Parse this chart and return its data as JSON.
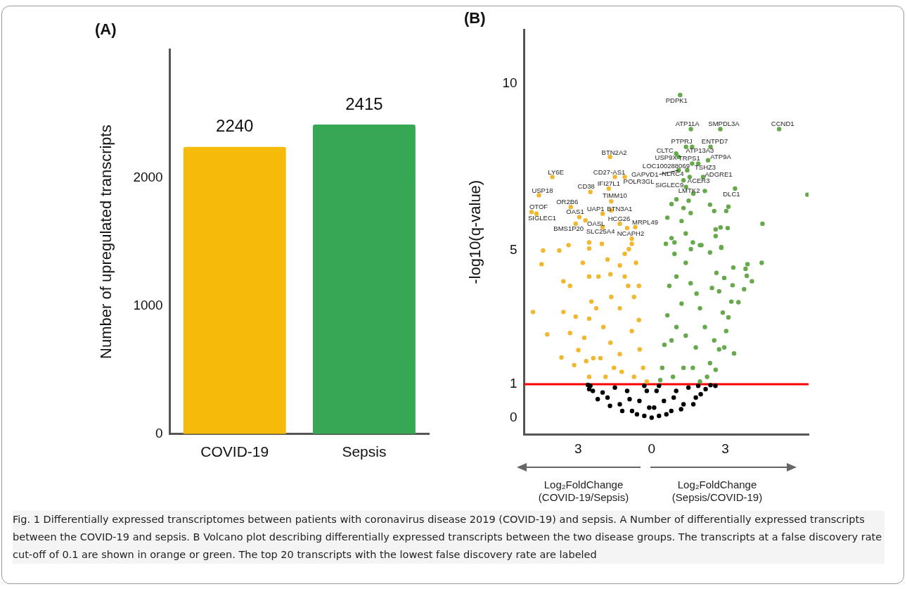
{
  "chart_data": [
    {
      "type": "bar",
      "title": "(A)",
      "ylabel": "Number of upregulated transcripts",
      "categories": [
        "COVID-19",
        "Sepsis"
      ],
      "values": [
        2240,
        2415
      ],
      "colors": [
        "#f6bb0a",
        "#36a853"
      ],
      "ylim": [
        0,
        3000
      ],
      "yticks": [
        0,
        1000,
        2000
      ],
      "data_labels": true,
      "grid": false,
      "legend": false
    },
    {
      "type": "scatter",
      "title": "(B)",
      "ylabel": "-log10(q-value)",
      "xlim": [
        -5.2,
        6.4
      ],
      "ylim": [
        -0.5,
        11.6
      ],
      "xticks": [
        {
          "value": -3,
          "label": "3"
        },
        0,
        3
      ],
      "yticks": [
        0,
        1,
        5,
        10
      ],
      "grid": false,
      "legend": false,
      "marker": "circle",
      "series": [
        {
          "color": "#000000",
          "x": [
            0,
            -0.3,
            0.3,
            -0.8,
            0.8,
            -1.3,
            1.3,
            -1.8,
            1.8,
            -2.4,
            2.2,
            -2.5,
            2.4,
            -0.5,
            0.5,
            -0.2,
            0.2,
            -0.3,
            0.3,
            -1.0,
            1.0,
            -1.5,
            1.5,
            -2.0,
            2.0,
            -1.2,
            1.2,
            -0.6,
            0.6,
            -2.6,
            -2.55,
            -0.9,
            0.9,
            -1.7,
            1.7,
            2.6,
            -2.2,
            0.1,
            -0.1,
            1.9
          ],
          "values": [
            0,
            0.05,
            0.05,
            0.2,
            0.2,
            0.4,
            0.4,
            0.6,
            0.6,
            0.8,
            0.85,
            0.95,
            0.97,
            0.5,
            0.5,
            0.8,
            0.8,
            0.95,
            0.95,
            0.8,
            0.8,
            0.9,
            0.9,
            0.75,
            0.7,
            0.2,
            0.25,
            0.1,
            0.1,
            0.98,
            0.85,
            0.55,
            0.6,
            0.35,
            0.4,
            0.95,
            0.55,
            0.3,
            0.3,
            0.95
          ]
        },
        {
          "color": "#f0b72f",
          "x": [
            -4.84,
            -4.49,
            -4.43,
            -4.26,
            -3.68,
            -3.16,
            -3.6,
            -3.33,
            -3.6,
            -3.33,
            -3.1,
            -2.99,
            -3.77,
            -3.39,
            -2.75,
            -2.55,
            -2.55,
            -2.81,
            -2.55,
            -2.46,
            -2.26,
            -2.17,
            -2.03,
            -1.97,
            -2.09,
            -2.55,
            -2.67,
            -1.8,
            -1.68,
            -1.65,
            -1.68,
            -1.54,
            -1.3,
            -1.3,
            -1.1,
            -0.93,
            -0.81,
            -0.96,
            -0.72,
            -0.81,
            -0.52,
            -0.49,
            -0.35,
            -0.2,
            -0.72,
            -1.22,
            -0.52,
            -0.64,
            -1.1,
            -1.3,
            -1.88,
            -2.38,
            -2.55,
            -0.81,
            -1.7,
            -4.05,
            -1.5,
            -1.1,
            -2.5,
            -1.75,
            -4.6,
            -1.65,
            -3.3,
            -4.9,
            -4.7,
            -2.95,
            -2.0,
            -2.7,
            -3.1,
            -1.3,
            -2.0,
            -0.67,
            -1.0,
            -1.65
          ],
          "values": [
            3.16,
            4.59,
            5.0,
            2.49,
            1.8,
            1.57,
            4.08,
            3.94,
            3.16,
            2.53,
            3.02,
            2.02,
            5.0,
            5.16,
            2.39,
            2.96,
            4.22,
            4.63,
            5.06,
            3.47,
            3.27,
            4.22,
            5.2,
            2.71,
            1.78,
            1.22,
            1.69,
            4.73,
            4.29,
            3.61,
            2.24,
            1.49,
            3.27,
            4.55,
            4.9,
            5.04,
            5.2,
            3.94,
            3.61,
            2.59,
            2.92,
            2.04,
            1.49,
            1.08,
            1.22,
            1.37,
            3.94,
            4.63,
            4.22,
            1.9,
            1.22,
            1.78,
            5.24,
            5.35,
            7.8,
            7.2,
            7.2,
            7.2,
            6.75,
            6.85,
            6.65,
            6.47,
            6.3,
            6.15,
            6.1,
            6.0,
            6.1,
            5.9,
            5.8,
            5.8,
            5.7,
            5.7,
            5.67,
            6.2
          ]
        },
        {
          "color": "#66a94b",
          "x": [
            0.58,
            0.93,
            1.6,
            2.03,
            2.84,
            4.49,
            3.91,
            3.83,
            3.88,
            4.09,
            3.77,
            3.33,
            3.3,
            2.96,
            2.64,
            2.38,
            2.75,
            2.46,
            3.25,
            3.54,
            3.13,
            2.9,
            3.04,
            3.36,
            2.96,
            2.61,
            2.38,
            2.26,
            1.97,
            1.8,
            2.17,
            1.97,
            1.83,
            1.59,
            1.39,
            1.22,
            1.39,
            1.3,
            1.01,
            0.93,
            0.72,
            0.64,
            0.52,
            0.43,
            0.35,
            0.81,
            1.01,
            0.87,
            1.68,
            2.55,
            2.75,
            0.81,
            1.01,
            1.51,
            2.17,
            2.38,
            3.13,
            3.04,
            2.55,
            1.3,
            1.59,
            0.64,
            1.22,
            4.52,
            2.61,
            2.81,
            3.1,
            2.61,
            0.81,
            1.39,
            1.68,
            2.84,
            1.97,
            1.16,
            1.6,
            2.8,
            5.2,
            1.4,
            1.65,
            2.4,
            1.0,
            1.1,
            1.65,
            1.9,
            2.3,
            1.45,
            2.1,
            1.55,
            1.3,
            1.4,
            1.7,
            3.4,
            6.35,
            1.1
          ],
          "values": [
            5.2,
            5.24,
            5.04,
            5.16,
            5.08,
            4.63,
            4.59,
            4.45,
            4.24,
            4.08,
            3.84,
            4.49,
            3.96,
            4.18,
            4.33,
            4.94,
            3.78,
            3.88,
            3.47,
            3.45,
            3.0,
            3.14,
            2.59,
            1.92,
            2.1,
            1.43,
            1.63,
            1.22,
            1.08,
            2.1,
            2.71,
            3.27,
            3.71,
            4.02,
            4.63,
            3.41,
            2.45,
            1.49,
            4.22,
            4.9,
            3.94,
            3.06,
            2.18,
            1.49,
            1.12,
            2.31,
            2.71,
            1.22,
            1.49,
            2.31,
            2.04,
            6.39,
            6.53,
            6.49,
            6.78,
            6.37,
            6.31,
            6.18,
            6.18,
            6.27,
            6.12,
            5.98,
            5.88,
            5.8,
            5.63,
            5.69,
            5.67,
            5.43,
            5.37,
            5.51,
            5.24,
            5.1,
            5.16,
            9.65,
            8.63,
            8.63,
            8.63,
            8.1,
            8.1,
            8.1,
            7.9,
            7.8,
            7.6,
            7.6,
            7.7,
            7.4,
            7.2,
            7.2,
            7.1,
            6.9,
            6.7,
            6.85,
            6.67,
            7.4
          ]
        }
      ],
      "ref_lines": [
        {
          "axis": "y",
          "value": 1,
          "color": "#ff0000"
        }
      ],
      "annotations": [
        "Log₂FoldChange\n(COVID-19/Sepsis)",
        "Log₂FoldChange\n(Sepsis/COVID-19)",
        "Fig. 1  Differentially expressed transcriptomes between patients with coronavirus disease 2019 (COVID-19) and sepsis. A Number of differentially expressed transcripts between the COVID-19 and sepsis. B Volcano plot describing differentially expressed transcripts between the two disease groups. The transcripts at a false discovery rate cut-off of 0.1 are shown in orange or green. The top 20 transcripts with the lowest false discovery rate are labeled",
        {
          "text": "PDPK1",
          "x": 1.16,
          "y": 9.65
        },
        {
          "text": "ATP11A",
          "x": 1.6,
          "y": 8.63
        },
        {
          "text": "SMPDL3A",
          "x": 2.8,
          "y": 8.63
        },
        {
          "text": "CCND1",
          "x": 5.2,
          "y": 8.63
        },
        {
          "text": "PTPRJ",
          "x": 1.4,
          "y": 8.1
        },
        {
          "text": "ENTPD7",
          "x": 2.4,
          "y": 8.1
        },
        {
          "text": "CLTC",
          "x": 1.0,
          "y": 7.9
        },
        {
          "text": "ATP13A3",
          "x": 1.65,
          "y": 8.1
        },
        {
          "text": "USP9X",
          "x": 1.1,
          "y": 7.8
        },
        {
          "text": "TRPS1",
          "x": 1.65,
          "y": 7.6
        },
        {
          "text": "ATP9A",
          "x": 2.3,
          "y": 7.7
        },
        {
          "text": "LOC100288069",
          "x": 1.45,
          "y": 7.4
        },
        {
          "text": "TSHZ3",
          "x": 1.9,
          "y": 7.6
        },
        {
          "text": "GAPVD1",
          "x": 1.1,
          "y": 7.4
        },
        {
          "text": "NLRC4",
          "x": 1.55,
          "y": 7.2
        },
        {
          "text": "ADGRE1",
          "x": 2.1,
          "y": 7.2
        },
        {
          "text": "SIGLEC9",
          "x": 1.3,
          "y": 7.1
        },
        {
          "text": "ACER3",
          "x": 1.4,
          "y": 6.9
        },
        {
          "text": "LMTK2",
          "x": 1.7,
          "y": 6.7
        },
        {
          "text": "DLC1",
          "x": 3.4,
          "y": 6.85
        },
        {
          "text": "BTN2A2",
          "x": -1.7,
          "y": 7.8
        },
        {
          "text": "LY6E",
          "x": -4.05,
          "y": 7.2
        },
        {
          "text": "CD27-AS1",
          "x": -1.5,
          "y": 7.2
        },
        {
          "text": "POLR3GL",
          "x": -1.1,
          "y": 7.2
        },
        {
          "text": "CD38",
          "x": -2.5,
          "y": 6.75
        },
        {
          "text": "IFI27L1",
          "x": -1.75,
          "y": 6.85
        },
        {
          "text": "USP18",
          "x": -4.6,
          "y": 6.65
        },
        {
          "text": "TIMM10",
          "x": -1.65,
          "y": 6.47
        },
        {
          "text": "OR2B6",
          "x": -3.3,
          "y": 6.3
        },
        {
          "text": "OTOF",
          "x": -4.9,
          "y": 6.15
        },
        {
          "text": "OAS1",
          "x": -2.95,
          "y": 6.0
        },
        {
          "text": "UAP1",
          "x": -2.0,
          "y": 6.1
        },
        {
          "text": "BTN3A1",
          "x": -1.65,
          "y": 6.2
        },
        {
          "text": "SIGLEC1",
          "x": -4.7,
          "y": 6.1
        },
        {
          "text": "OASL",
          "x": -2.7,
          "y": 5.9
        },
        {
          "text": "HCG26",
          "x": -1.3,
          "y": 5.8
        },
        {
          "text": "MRPL49",
          "x": -0.67,
          "y": 5.7
        },
        {
          "text": "BMS1P20",
          "x": -3.1,
          "y": 5.8
        },
        {
          "text": "SLC25A4",
          "x": -2.0,
          "y": 5.7
        },
        {
          "text": "NCAPH2",
          "x": -1.0,
          "y": 5.67
        }
      ]
    }
  ]
}
